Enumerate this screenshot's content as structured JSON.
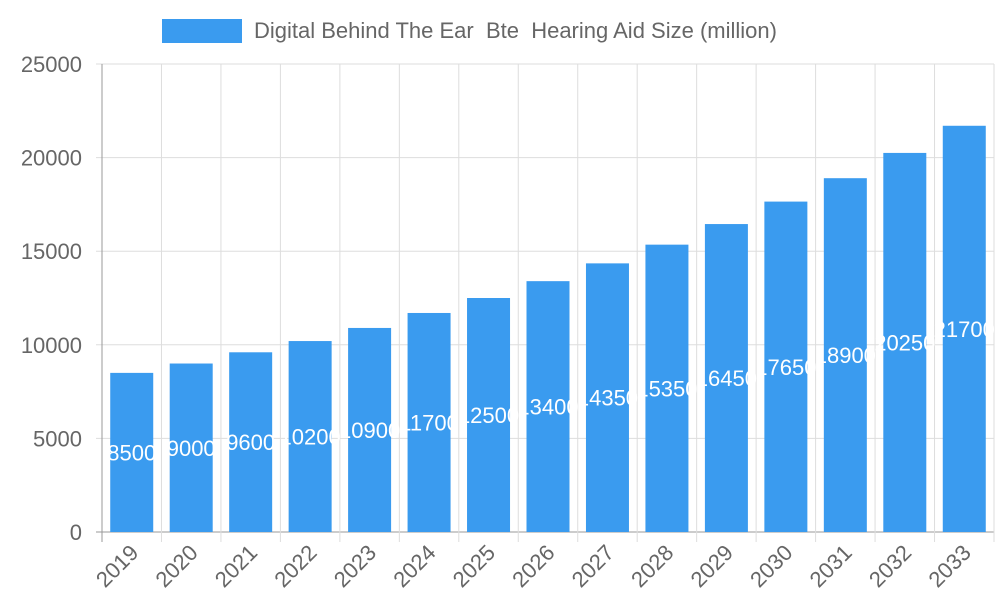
{
  "chart_data": {
    "type": "bar",
    "title": "",
    "xlabel": "",
    "ylabel": "",
    "categories": [
      "2019",
      "2020",
      "2021",
      "2022",
      "2023",
      "2024",
      "2025",
      "2026",
      "2027",
      "2028",
      "2029",
      "2030",
      "2031",
      "2032",
      "2033"
    ],
    "series": [
      {
        "name": "Digital Behind The Ear  Bte  Hearing Aid Size (million)",
        "values": [
          8500,
          9000,
          9600,
          10200,
          10900,
          11700,
          12500,
          13400,
          14350,
          15350,
          16450,
          17650,
          18900,
          20250,
          21700
        ],
        "color": "#3a9bef"
      }
    ],
    "ylim": [
      0,
      25000
    ],
    "yticks": [
      "0",
      "5000",
      "10000",
      "15000",
      "20000",
      "25000"
    ],
    "grid": true,
    "legend": "top",
    "data_labels": true
  }
}
